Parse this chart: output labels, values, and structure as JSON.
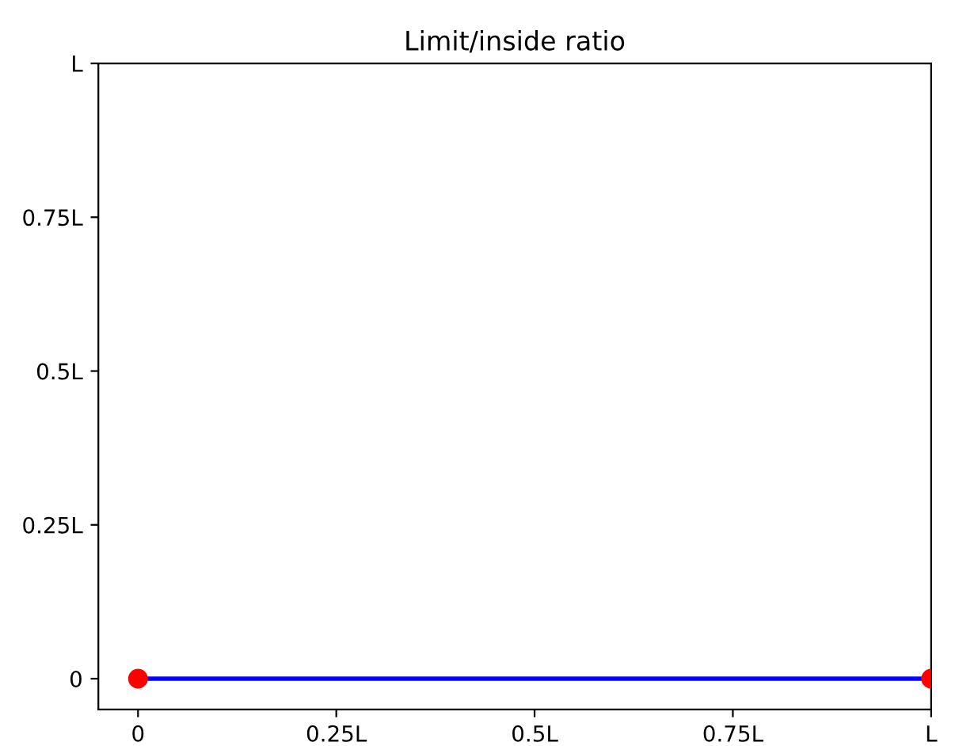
{
  "chart_data": {
    "type": "line",
    "title": "Limit/inside ratio",
    "x": [
      0,
      1
    ],
    "series": [
      {
        "color": "#0000ff",
        "values": [
          0,
          0
        ]
      },
      {
        "type": "scatter",
        "color": "#ff0000",
        "values": [
          0,
          0
        ]
      }
    ],
    "xlim": [
      -0.05,
      1.0
    ],
    "ylim": [
      -0.05,
      1.0
    ],
    "xticks": [
      0,
      {
        "value": 0.25,
        "label": "0.25L"
      },
      {
        "value": 0.5,
        "label": "0.5L"
      },
      {
        "value": 0.75,
        "label": "0.75L"
      },
      {
        "value": 1,
        "label": "L"
      }
    ],
    "yticks": [
      0,
      {
        "value": 0.25,
        "label": "0.25L"
      },
      {
        "value": 0.5,
        "label": "0.5L"
      },
      {
        "value": 0.75,
        "label": "0.75L"
      },
      {
        "value": 1,
        "label": "L"
      }
    ],
    "grid": false
  }
}
